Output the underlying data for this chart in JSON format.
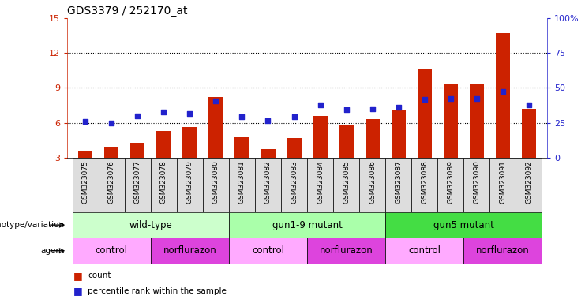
{
  "title": "GDS3379 / 252170_at",
  "samples": [
    "GSM323075",
    "GSM323076",
    "GSM323077",
    "GSM323078",
    "GSM323079",
    "GSM323080",
    "GSM323081",
    "GSM323082",
    "GSM323083",
    "GSM323084",
    "GSM323085",
    "GSM323086",
    "GSM323087",
    "GSM323088",
    "GSM323089",
    "GSM323090",
    "GSM323091",
    "GSM323092"
  ],
  "bar_values": [
    3.6,
    3.9,
    4.3,
    5.3,
    5.6,
    8.2,
    4.8,
    3.7,
    4.7,
    6.6,
    5.8,
    6.3,
    7.1,
    10.6,
    9.3,
    9.3,
    13.7,
    7.2
  ],
  "dot_values": [
    6.1,
    6.0,
    6.6,
    6.9,
    6.8,
    7.9,
    6.5,
    6.2,
    6.5,
    7.5,
    7.1,
    7.2,
    7.3,
    8.0,
    8.1,
    8.1,
    8.7,
    7.5
  ],
  "bar_color": "#cc2200",
  "dot_color": "#2222cc",
  "ylim_left": [
    3,
    15
  ],
  "yticks_left": [
    3,
    6,
    9,
    12,
    15
  ],
  "ylim_right": [
    0,
    100
  ],
  "yticks_right": [
    0,
    25,
    50,
    75,
    100
  ],
  "genotype_groups": [
    {
      "label": "wild-type",
      "start": 0,
      "end": 5,
      "color": "#ccffcc"
    },
    {
      "label": "gun1-9 mutant",
      "start": 6,
      "end": 11,
      "color": "#aaffaa"
    },
    {
      "label": "gun5 mutant",
      "start": 12,
      "end": 17,
      "color": "#44dd44"
    }
  ],
  "agent_groups": [
    {
      "label": "control",
      "start": 0,
      "end": 2,
      "color": "#ffaaff"
    },
    {
      "label": "norflurazon",
      "start": 3,
      "end": 5,
      "color": "#dd44dd"
    },
    {
      "label": "control",
      "start": 6,
      "end": 8,
      "color": "#ffaaff"
    },
    {
      "label": "norflurazon",
      "start": 9,
      "end": 11,
      "color": "#dd44dd"
    },
    {
      "label": "control",
      "start": 12,
      "end": 14,
      "color": "#ffaaff"
    },
    {
      "label": "norflurazon",
      "start": 15,
      "end": 17,
      "color": "#dd44dd"
    }
  ],
  "legend_items": [
    {
      "label": "count",
      "color": "#cc2200"
    },
    {
      "label": "percentile rank within the sample",
      "color": "#2222cc"
    }
  ],
  "grid_lines": [
    6,
    9,
    12
  ],
  "left_axis_color": "#cc2200",
  "right_axis_color": "#2222cc",
  "xtick_bg_color": "#dddddd"
}
